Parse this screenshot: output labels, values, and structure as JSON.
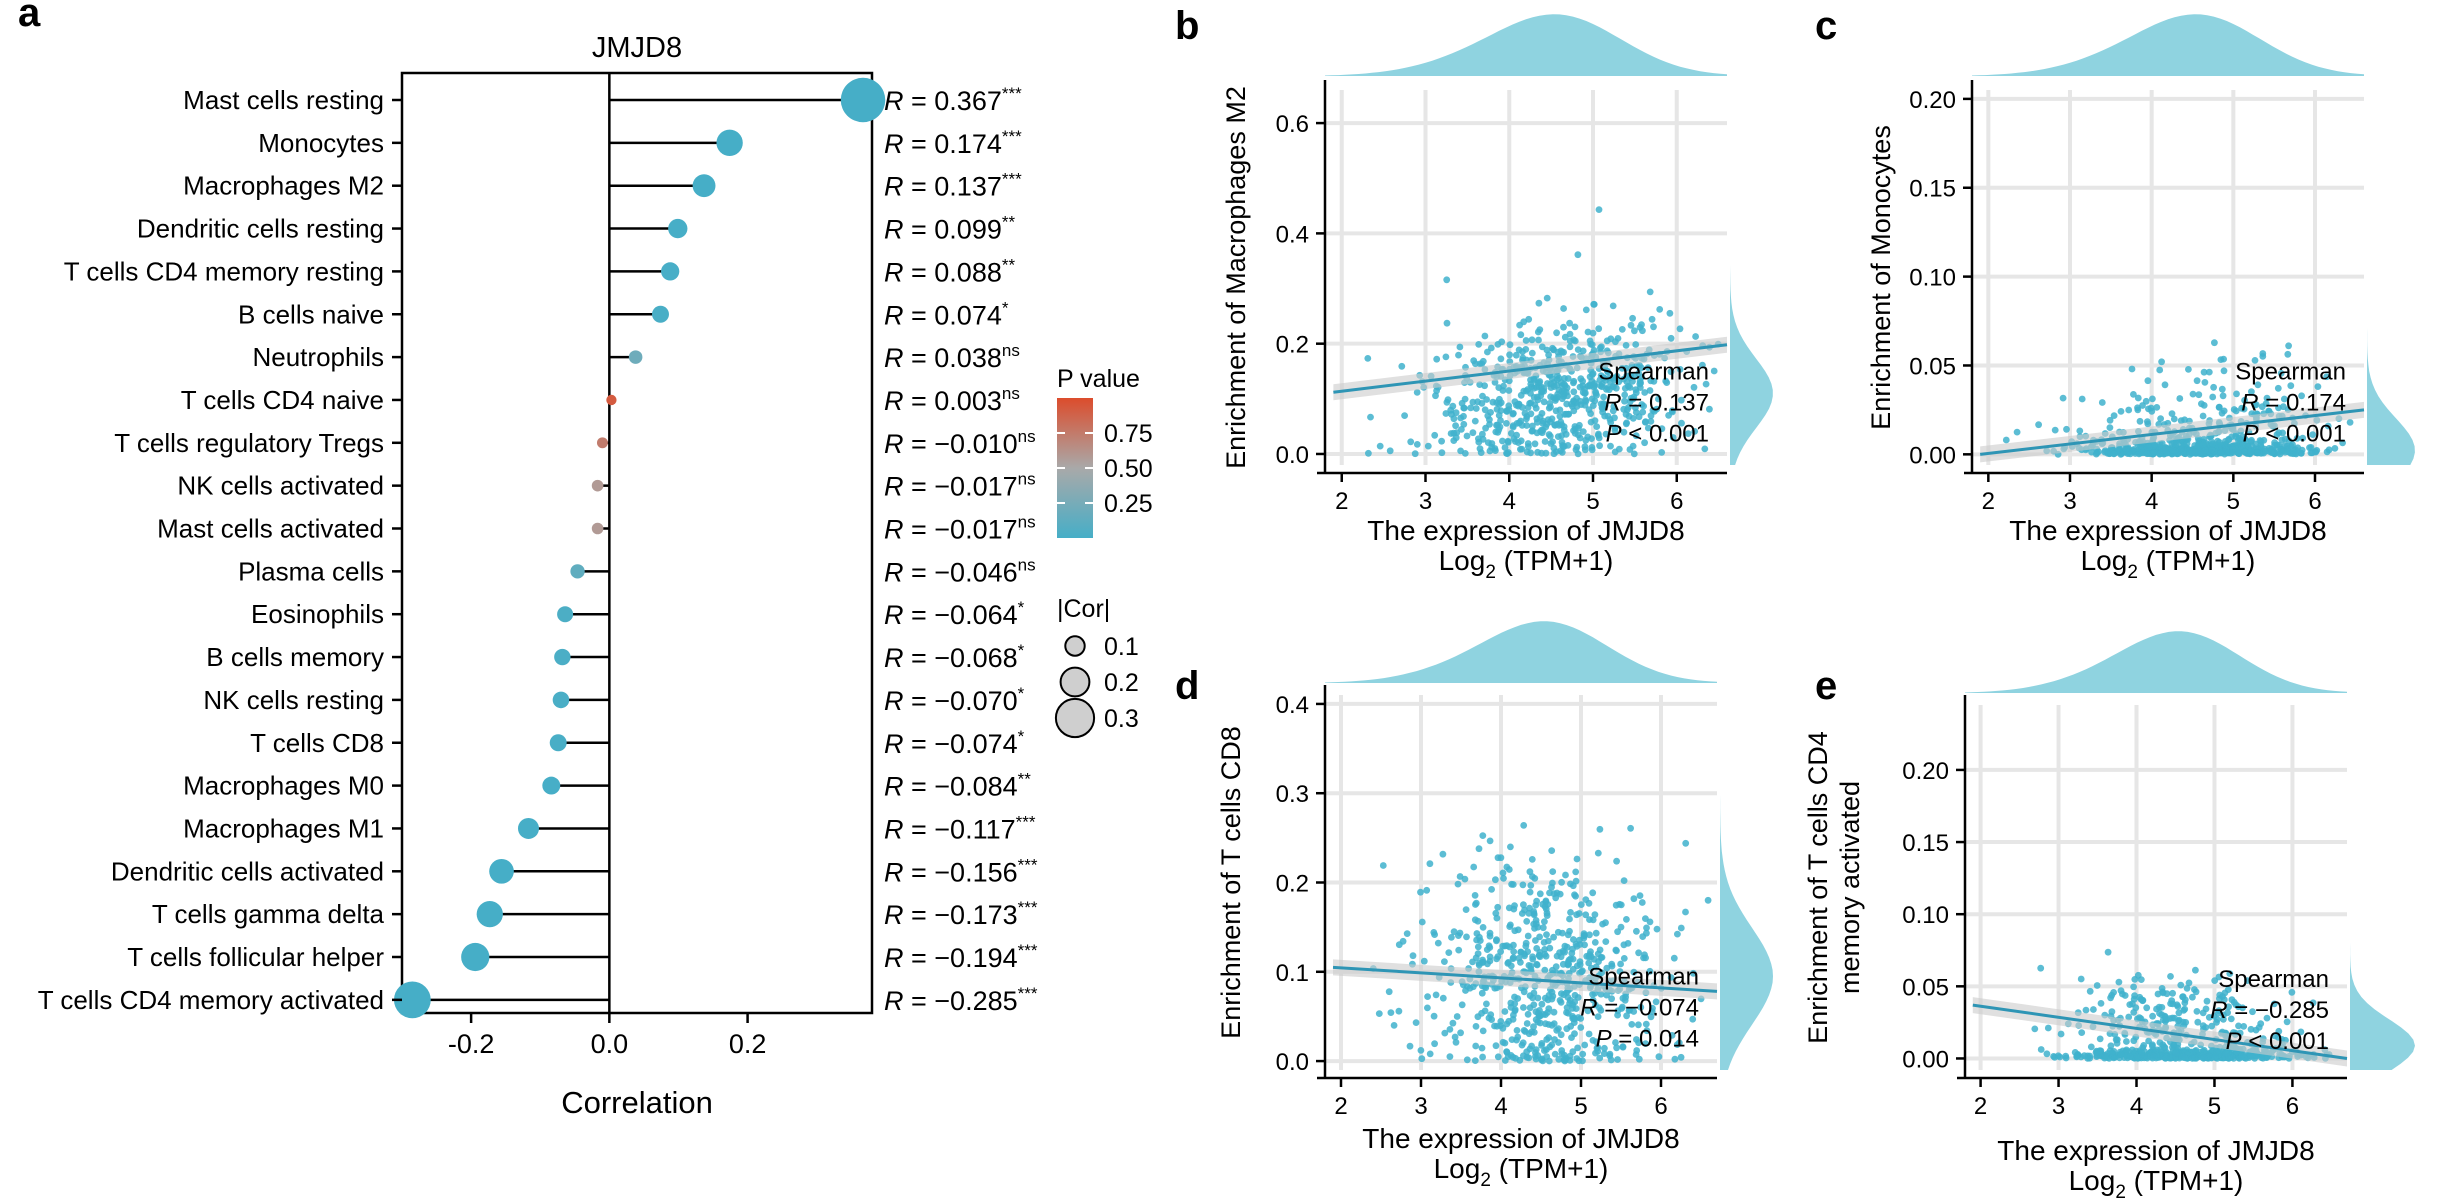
{
  "panels": {
    "a": {
      "letter": "a",
      "chart_data": {
        "type": "lollipop",
        "title": "JMJD8",
        "xlabel": "Correlation",
        "xlim": [
          -0.3,
          0.38
        ],
        "xticks": [
          "-0.2",
          "0.0",
          "0.2"
        ],
        "xtick_values": [
          -0.2,
          0.0,
          0.2
        ],
        "rows": [
          {
            "label": "Mast cells resting",
            "r": 0.367,
            "r_text": "0.367",
            "sig": "***",
            "p": 0.0
          },
          {
            "label": "Monocytes",
            "r": 0.174,
            "r_text": "0.174",
            "sig": "***",
            "p": 0.0
          },
          {
            "label": "Macrophages M2",
            "r": 0.137,
            "r_text": "0.137",
            "sig": "***",
            "p": 0.0
          },
          {
            "label": "Dendritic cells resting",
            "r": 0.099,
            "r_text": "0.099",
            "sig": "**",
            "p": 0.005
          },
          {
            "label": "T cells CD4 memory resting",
            "r": 0.088,
            "r_text": "0.088",
            "sig": "**",
            "p": 0.008
          },
          {
            "label": "B cells naive",
            "r": 0.074,
            "r_text": "0.074",
            "sig": "*",
            "p": 0.015
          },
          {
            "label": "Neutrophils",
            "r": 0.038,
            "r_text": "0.038",
            "sig": "ns",
            "p": 0.2
          },
          {
            "label": "T cells CD4 naive",
            "r": 0.003,
            "r_text": "0.003",
            "sig": "ns",
            "p": 0.92
          },
          {
            "label": "T cells regulatory Tregs",
            "r": -0.01,
            "r_text": "−0.010",
            "sig": "ns",
            "p": 0.74
          },
          {
            "label": "NK cells activated",
            "r": -0.017,
            "r_text": "−0.017",
            "sig": "ns",
            "p": 0.58
          },
          {
            "label": "Mast cells activated",
            "r": -0.017,
            "r_text": "−0.017",
            "sig": "ns",
            "p": 0.58
          },
          {
            "label": "Plasma cells",
            "r": -0.046,
            "r_text": "−0.046",
            "sig": "ns",
            "p": 0.13
          },
          {
            "label": "Eosinophils",
            "r": -0.064,
            "r_text": "−0.064",
            "sig": "*",
            "p": 0.03
          },
          {
            "label": "B cells memory",
            "r": -0.068,
            "r_text": "−0.068",
            "sig": "*",
            "p": 0.025
          },
          {
            "label": "NK cells resting",
            "r": -0.07,
            "r_text": "−0.070",
            "sig": "*",
            "p": 0.02
          },
          {
            "label": "T cells CD8",
            "r": -0.074,
            "r_text": "−0.074",
            "sig": "*",
            "p": 0.014
          },
          {
            "label": "Macrophages M0",
            "r": -0.084,
            "r_text": "−0.084",
            "sig": "**",
            "p": 0.006
          },
          {
            "label": "Macrophages M1",
            "r": -0.117,
            "r_text": "−0.117",
            "sig": "***",
            "p": 0.0
          },
          {
            "label": "Dendritic cells activated",
            "r": -0.156,
            "r_text": "−0.156",
            "sig": "***",
            "p": 0.0
          },
          {
            "label": "T cells gamma delta",
            "r": -0.173,
            "r_text": "−0.173",
            "sig": "***",
            "p": 0.0
          },
          {
            "label": "T cells follicular helper",
            "r": -0.194,
            "r_text": "−0.194",
            "sig": "***",
            "p": 0.0
          },
          {
            "label": "T cells CD4 memory activated",
            "r": -0.285,
            "r_text": "−0.285",
            "sig": "***",
            "p": 0.0
          }
        ]
      },
      "legend": {
        "p_title": "P value",
        "p_ticks": [
          "0.75",
          "0.50",
          "0.25"
        ],
        "p_tick_values": [
          0.75,
          0.5,
          0.25
        ],
        "cor_title": "|Cor|",
        "cor_items": [
          "0.1",
          "0.2",
          "0.3"
        ],
        "cor_values": [
          0.1,
          0.2,
          0.3
        ]
      }
    },
    "scatter": [
      {
        "letter": "b",
        "ylabel": "Enrichment of Macrophages M2",
        "ylabel_lines": [
          "Enrichment of Macrophages M2"
        ],
        "xlabel": "The expression of JMJD8",
        "xlabel2_pre": "Log",
        "xlabel2_sub": "2",
        "xlabel2_post": " (TPM+1)",
        "stat_title": "Spearman",
        "r_value": "0.137",
        "p_op": "<",
        "p_value": "0.001",
        "chart_data": {
          "type": "scatter",
          "xlim": [
            1.8,
            6.6
          ],
          "ylim": [
            -0.02,
            0.66
          ],
          "xticks": [
            2,
            3,
            4,
            5,
            6
          ],
          "yticks": [
            0.0,
            0.2,
            0.4,
            0.6
          ],
          "ytick_labels": [
            "0.0",
            "0.2",
            "0.4",
            "0.6"
          ],
          "fit_line": [
            [
              1.9,
              0.112
            ],
            [
              6.6,
              0.198
            ]
          ],
          "base_level": 0.11,
          "spread": 0.07,
          "floor_frac": 0.0,
          "slope": 0.018,
          "max_y": 0.62,
          "seed": 11
        }
      },
      {
        "letter": "c",
        "ylabel": "Enrichment of Monocytes",
        "ylabel_lines": [
          "Enrichment of Monocytes"
        ],
        "xlabel": "The expression of JMJD8",
        "xlabel2_pre": "Log",
        "xlabel2_sub": "2",
        "xlabel2_post": " (TPM+1)",
        "stat_title": "Spearman",
        "r_value": "0.174",
        "p_op": "<",
        "p_value": "0.001",
        "chart_data": {
          "type": "scatter",
          "xlim": [
            1.8,
            6.6
          ],
          "ylim": [
            -0.006,
            0.205
          ],
          "xticks": [
            2,
            3,
            4,
            5,
            6
          ],
          "yticks": [
            0.0,
            0.05,
            0.1,
            0.15,
            0.2
          ],
          "ytick_labels": [
            "0.00",
            "0.05",
            "0.10",
            "0.15",
            "0.20"
          ],
          "fit_line": [
            [
              1.9,
              0.0
            ],
            [
              6.6,
              0.025
            ]
          ],
          "base_level": 0.004,
          "spread": 0.02,
          "floor_frac": 0.45,
          "slope": 0.006,
          "max_y": 0.198,
          "seed": 23
        }
      },
      {
        "letter": "d",
        "ylabel": "Enrichment of T cells CD8",
        "ylabel_lines": [
          "Enrichment of T cells CD8"
        ],
        "xlabel": "The expression of JMJD8",
        "xlabel2_pre": "Log",
        "xlabel2_sub": "2",
        "xlabel2_post": " (TPM+1)",
        "stat_title": "Spearman",
        "r_value": "−0.074",
        "p_op": "=",
        "p_value": "0.014",
        "chart_data": {
          "type": "scatter",
          "xlim": [
            1.8,
            6.7
          ],
          "ylim": [
            -0.01,
            0.41
          ],
          "xticks": [
            2,
            3,
            4,
            5,
            6
          ],
          "yticks": [
            0.0,
            0.1,
            0.2,
            0.3,
            0.4
          ],
          "ytick_labels": [
            "0.0",
            "0.1",
            "0.2",
            "0.3",
            "0.4"
          ],
          "fit_line": [
            [
              1.9,
              0.105
            ],
            [
              6.7,
              0.078
            ]
          ],
          "base_level": 0.1,
          "spread": 0.06,
          "floor_frac": 0.05,
          "slope": -0.006,
          "max_y": 0.405,
          "seed": 37
        }
      },
      {
        "letter": "e",
        "ylabel": "Enrichment of T cells CD4 memory activated",
        "ylabel_lines": [
          "Enrichment of T cells CD4",
          "memory activated"
        ],
        "xlabel": "The expression of JMJD8",
        "xlabel2_pre": "Log",
        "xlabel2_sub": "2",
        "xlabel2_post": " (TPM+1)",
        "stat_title": "Spearman",
        "r_value": "−0.285",
        "p_op": "<",
        "p_value": "0.001",
        "chart_data": {
          "type": "scatter",
          "xlim": [
            1.8,
            6.7
          ],
          "ylim": [
            -0.008,
            0.245
          ],
          "xticks": [
            2,
            3,
            4,
            5,
            6
          ],
          "yticks": [
            0.0,
            0.05,
            0.1,
            0.15,
            0.2
          ],
          "ytick_labels": [
            "0.00",
            "0.05",
            "0.10",
            "0.15",
            "0.20"
          ],
          "fit_line": [
            [
              1.9,
              0.037
            ],
            [
              6.7,
              0.0
            ]
          ],
          "base_level": 0.018,
          "spread": 0.02,
          "floor_frac": 0.5,
          "slope": -0.008,
          "max_y": 0.24,
          "seed": 53
        }
      }
    ]
  },
  "colors": {
    "point": "#3fb1cc",
    "density": "#8fd3e0",
    "low_p": "#46aec7",
    "mid_p": "#a9a9a9",
    "high_p": "#dc4c2c",
    "grid": "#e6e6e6",
    "axis": "#000000"
  }
}
